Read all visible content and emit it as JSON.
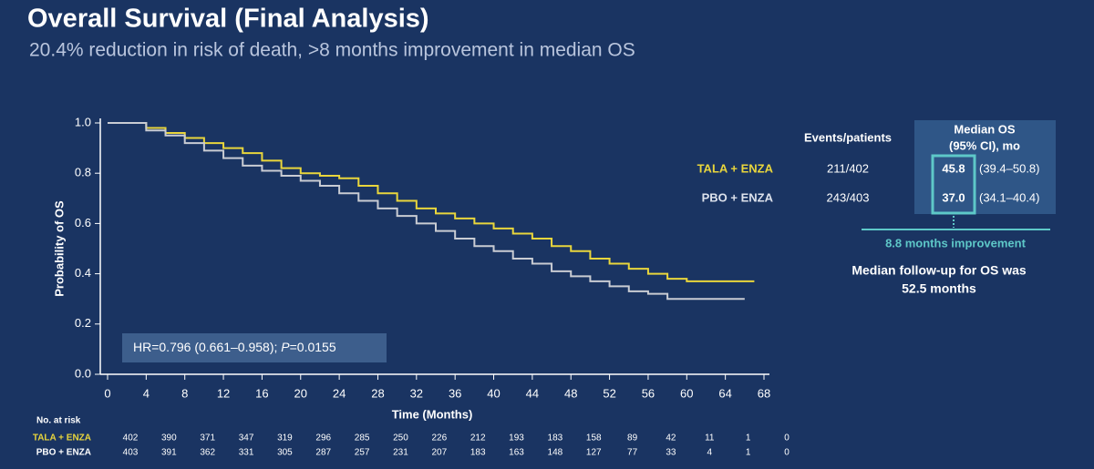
{
  "title": "Overall Survival (Final Analysis)",
  "subtitle": "20.4% reduction in risk of death, >8 months improvement in median OS",
  "chart_data": {
    "type": "line",
    "step": true,
    "xlabel": "Time (Months)",
    "ylabel": "Probability of OS",
    "x": [
      0,
      2,
      4,
      6,
      8,
      10,
      12,
      14,
      16,
      18,
      20,
      22,
      24,
      26,
      28,
      30,
      32,
      34,
      36,
      38,
      40,
      42,
      44,
      46,
      48,
      50,
      52,
      54,
      56,
      58,
      60,
      66,
      67
    ],
    "series": [
      {
        "name": "TALA + ENZA",
        "color": "#e9d63c",
        "values": [
          1.0,
          1.0,
          0.98,
          0.96,
          0.94,
          0.92,
          0.9,
          0.88,
          0.85,
          0.82,
          0.8,
          0.79,
          0.78,
          0.75,
          0.72,
          0.69,
          0.66,
          0.64,
          0.62,
          0.6,
          0.58,
          0.56,
          0.54,
          0.51,
          0.49,
          0.46,
          0.44,
          0.42,
          0.4,
          0.38,
          0.37,
          0.37,
          0.37
        ]
      },
      {
        "name": "PBO + ENZA",
        "color": "#c9ccd3",
        "values": [
          1.0,
          1.0,
          0.97,
          0.95,
          0.92,
          0.89,
          0.86,
          0.83,
          0.81,
          0.79,
          0.77,
          0.75,
          0.72,
          0.69,
          0.66,
          0.63,
          0.6,
          0.57,
          0.54,
          0.51,
          0.49,
          0.46,
          0.44,
          0.41,
          0.39,
          0.37,
          0.35,
          0.33,
          0.32,
          0.3,
          0.3,
          0.3,
          null
        ]
      }
    ],
    "xlim": [
      0,
      68
    ],
    "xticks": [
      0,
      4,
      8,
      12,
      16,
      20,
      24,
      28,
      32,
      36,
      40,
      44,
      48,
      52,
      56,
      60,
      64,
      68
    ],
    "ylim": [
      0,
      1
    ],
    "yticks": [
      {
        "value": 0,
        "label": "0.0"
      },
      0.2,
      0.4,
      0.6,
      0.8,
      {
        "value": 1,
        "label": "1.0"
      }
    ],
    "hr_text": [
      "HR=0.796 (0.661–0.958); ",
      "P",
      "=0.0155"
    ],
    "at_risk": {
      "title": "No. at risk",
      "rows": [
        {
          "name": "TALA + ENZA",
          "color": "#e9d63c",
          "values": [
            402,
            390,
            371,
            347,
            319,
            296,
            285,
            250,
            226,
            212,
            193,
            183,
            158,
            89,
            42,
            11,
            1,
            0
          ]
        },
        {
          "name": "PBO + ENZA",
          "color": "#ffffff",
          "values": [
            403,
            391,
            362,
            331,
            305,
            287,
            257,
            231,
            207,
            183,
            163,
            148,
            127,
            77,
            33,
            4,
            1,
            0
          ]
        }
      ]
    }
  },
  "summary": {
    "header": {
      "events": "Events/patients",
      "median": [
        "Median OS",
        "(95% CI), mo"
      ]
    },
    "rows": [
      {
        "name": "TALA + ENZA",
        "events": "211/402",
        "median": "45.8",
        "ci": "(39.4–50.8)"
      },
      {
        "name": "PBO + ENZA",
        "events": "243/403",
        "median": "37.0",
        "ci": "(34.1–40.4)"
      }
    ],
    "improvement": "8.8 months improvement",
    "followup": [
      "Median follow-up for OS was",
      "52.5 months"
    ]
  }
}
